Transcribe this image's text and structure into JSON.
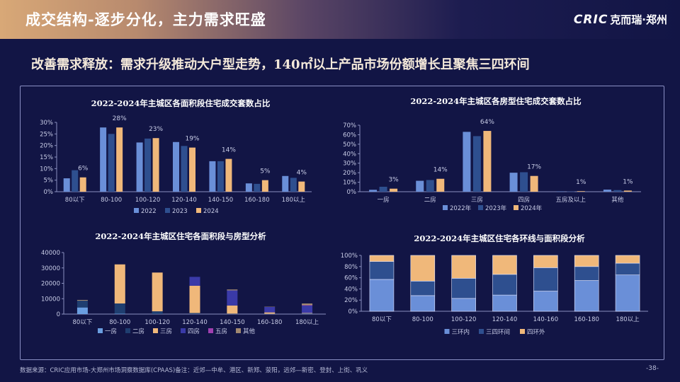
{
  "header": {
    "title": "成交结构-逐步分化，主力需求旺盛",
    "logo_mark": "CRIC",
    "logo_text": "克而瑞·郑州"
  },
  "subtitle": "改善需求释放：需求升级推动大户型走势，140㎡以上产品市场份额增长且聚焦三四环间",
  "footer": {
    "source": "数据来源：CRIC应用市场-大郑州市场洞察数据库(CPAAS)备注：近郊—中牟、港区、新郑、荥阳，远郊—新密、登封、上街、巩义",
    "page": "-38-"
  },
  "chart_data": [
    {
      "type": "bar",
      "title": "2022-2024年主城区各面积段住宅成交套数占比",
      "categories": [
        "80以下",
        "80-100",
        "100-120",
        "120-140",
        "140-150",
        "160-180",
        "180以上"
      ],
      "yticks": [
        "0%",
        "5%",
        "10%",
        "15%",
        "20%",
        "25%",
        "30%"
      ],
      "ylim": [
        0,
        30
      ],
      "series": [
        {
          "name": "2022",
          "color": "#6a8fd8",
          "values": [
            5.8,
            27.8,
            21.3,
            21.5,
            13.2,
            3.6,
            6.8
          ]
        },
        {
          "name": "2023",
          "color": "#2e4f8f",
          "values": [
            9.3,
            25.0,
            23.0,
            19.8,
            13.2,
            3.4,
            6.0
          ]
        },
        {
          "name": "2024",
          "color": "#f0b87a",
          "values": [
            6.2,
            27.8,
            23.2,
            19.1,
            14.2,
            5.0,
            4.4
          ],
          "labels": [
            "6%",
            "28%",
            "23%",
            "19%",
            "14%",
            "5%",
            "4%"
          ]
        }
      ],
      "legend": "bottom"
    },
    {
      "type": "bar",
      "title": "2022-2024年主城区各房型住宅成交套数占比",
      "categories": [
        "一房",
        "二房",
        "三房",
        "四房",
        "五房及以上",
        "其他"
      ],
      "yticks": [
        "0%",
        "10%",
        "20%",
        "30%",
        "40%",
        "50%",
        "60%",
        "70%"
      ],
      "ylim": [
        0,
        70
      ],
      "series": [
        {
          "name": "2022年",
          "color": "#6a8fd8",
          "values": [
            2,
            11.5,
            63,
            20,
            0.3,
            2.2
          ]
        },
        {
          "name": "2023年",
          "color": "#2e4f8f",
          "values": [
            5.2,
            12.3,
            58.5,
            20.5,
            0.2,
            1.7
          ]
        },
        {
          "name": "2024年",
          "color": "#f0b87a",
          "values": [
            3.2,
            13.6,
            64,
            16.6,
            0.6,
            1.2
          ],
          "labels": [
            "3%",
            "14%",
            "64%",
            "17%",
            "1%",
            "1%"
          ]
        }
      ],
      "legend": "bottom"
    },
    {
      "type": "stacked-bar",
      "title": "2022-2024年主城区住宅各面积段与房型分析",
      "categories": [
        "80以下",
        "80-100",
        "100-120",
        "120-140",
        "140-150",
        "160-180",
        "180以上"
      ],
      "yticks": [
        "0",
        "10000",
        "20000",
        "30000",
        "40000"
      ],
      "ylim": [
        0,
        40000
      ],
      "series": [
        {
          "name": "一房",
          "color": "#6a9ee0",
          "values": [
            4300,
            300,
            100,
            100,
            100,
            100,
            200
          ]
        },
        {
          "name": "二房",
          "color": "#1f3e70",
          "values": [
            4400,
            6600,
            1700,
            600,
            200,
            100,
            200
          ]
        },
        {
          "name": "三房",
          "color": "#f0b87a",
          "values": [
            0,
            25400,
            25200,
            17700,
            5300,
            900,
            300
          ]
        },
        {
          "name": "四房",
          "color": "#3a3aa8",
          "values": [
            0,
            0,
            0,
            5800,
            9800,
            3500,
            4800
          ]
        },
        {
          "name": "五房",
          "color": "#a040b0",
          "values": [
            0,
            0,
            0,
            0,
            0,
            0,
            300
          ]
        },
        {
          "name": "其他",
          "color": "#a08870",
          "values": [
            500,
            0,
            0,
            0,
            600,
            200,
            1100
          ]
        }
      ],
      "legend": "bottom"
    },
    {
      "type": "stacked-bar-100",
      "title": "2022-2024年主城区住宅各环线与面积段分析",
      "categories": [
        "80以下",
        "80-100",
        "100-120",
        "120-140",
        "140-160",
        "160-180",
        "180以上"
      ],
      "yticks": [
        "0%",
        "20%",
        "40%",
        "60%",
        "80%",
        "100%"
      ],
      "ylim": [
        0,
        100
      ],
      "series": [
        {
          "name": "三环内",
          "color": "#6a8fd8",
          "values": [
            57,
            28,
            23,
            29,
            36,
            55,
            65
          ]
        },
        {
          "name": "三四环间",
          "color": "#2e4f8f",
          "values": [
            32,
            26,
            36,
            37,
            42,
            25,
            21
          ]
        },
        {
          "name": "四环外",
          "color": "#f0b87a",
          "values": [
            11,
            46,
            41,
            34,
            22,
            20,
            14
          ]
        }
      ],
      "legend": "bottom"
    }
  ]
}
